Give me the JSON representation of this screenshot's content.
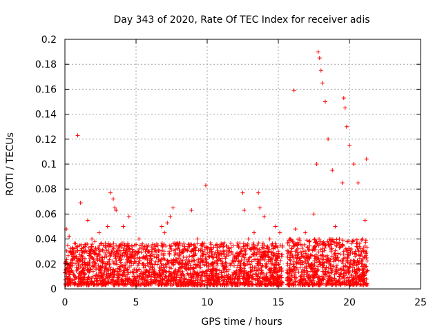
{
  "chart_data": {
    "type": "scatter",
    "title": "Day 343 of 2020, Rate Of TEC Index for receiver adis",
    "xlabel": "GPS time / hours",
    "ylabel": "ROTI / TECUs",
    "xlim": [
      0,
      25
    ],
    "ylim": [
      0,
      0.2
    ],
    "xticks": [
      0,
      5,
      10,
      15,
      20,
      25
    ],
    "yticks": [
      0,
      0.02,
      0.04,
      0.06,
      0.08,
      0.1,
      0.12,
      0.14,
      0.16,
      0.18,
      0.2
    ],
    "grid": true,
    "marker": "+",
    "color": "#ff0000",
    "series": [
      {
        "name": "ROTI",
        "x": [
          0.1,
          0.2,
          0.3,
          0.5,
          0.6,
          0.9,
          1.1,
          1.3,
          1.6,
          1.9,
          2.1,
          2.4,
          2.7,
          3.0,
          3.2,
          3.4,
          3.5,
          3.6,
          3.8,
          4.1,
          4.5,
          4.8,
          4.9,
          5.2,
          5.5,
          5.9,
          6.3,
          6.8,
          7.0,
          7.2,
          7.4,
          7.6,
          7.8,
          8.3,
          8.9,
          9.3,
          9.7,
          9.9,
          10.3,
          10.7,
          11.2,
          11.7,
          12.1,
          12.5,
          12.6,
          12.9,
          13.3,
          13.6,
          13.7,
          14.0,
          14.4,
          14.8,
          15.1,
          15.3,
          15.7,
          16.1,
          16.2,
          16.5,
          16.9,
          17.2,
          17.5,
          17.7,
          17.8,
          17.9,
          18.0,
          18.1,
          18.3,
          18.5,
          18.8,
          19.0,
          19.3,
          19.5,
          19.6,
          19.7,
          19.8,
          20.0,
          20.3,
          20.6,
          20.9,
          21.0,
          21.1,
          21.2
        ],
        "y": [
          0.048,
          0.035,
          0.042,
          0.03,
          0.028,
          0.123,
          0.069,
          0.033,
          0.055,
          0.04,
          0.038,
          0.045,
          0.035,
          0.05,
          0.077,
          0.072,
          0.065,
          0.063,
          0.035,
          0.05,
          0.058,
          0.03,
          0.035,
          0.04,
          0.032,
          0.03,
          0.035,
          0.05,
          0.045,
          0.053,
          0.058,
          0.065,
          0.035,
          0.03,
          0.063,
          0.04,
          0.03,
          0.083,
          0.032,
          0.028,
          0.03,
          0.03,
          0.035,
          0.077,
          0.063,
          0.04,
          0.045,
          0.077,
          0.065,
          0.058,
          0.04,
          0.05,
          0.045,
          0.035,
          0.03,
          0.159,
          0.048,
          0.04,
          0.045,
          0.035,
          0.06,
          0.1,
          0.19,
          0.185,
          0.175,
          0.165,
          0.15,
          0.12,
          0.095,
          0.05,
          0.04,
          0.085,
          0.153,
          0.145,
          0.13,
          0.115,
          0.1,
          0.085,
          0.04,
          0.03,
          0.055,
          0.104
        ]
      }
    ],
    "dense_bands": [
      {
        "x_start": 0.0,
        "x_end": 15.3,
        "y_floor": 0.003,
        "y_typical": 0.022
      },
      {
        "x_start": 15.6,
        "x_end": 21.3,
        "y_floor": 0.003,
        "y_typical": 0.025
      }
    ]
  }
}
